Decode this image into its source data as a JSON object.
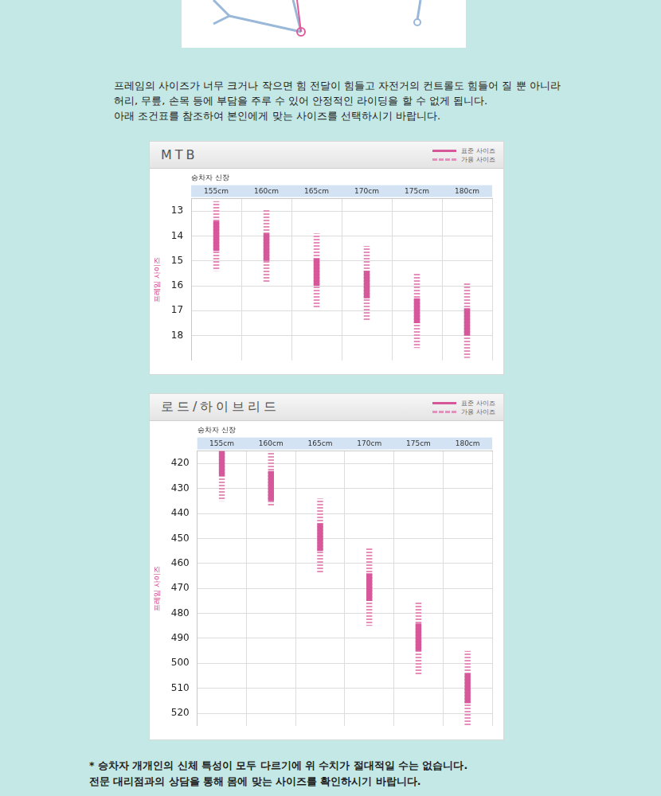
{
  "intro": [
    "프레임의 사이즈가 너무 크거나 작으면 힘 전달이 힘들고 자전거의 컨트롤도 힘들어 질 뿐 아니라",
    "허리, 무릎, 손목 등에 부담을 주루 수 있어 안정적인 라이딩을 할 수 없게 됩니다.",
    "아래 조건표를 참조하여 본인에게 맞는 사이즈를 선택하시기 바랍니다."
  ],
  "chart_data": [
    {
      "type": "bar",
      "title": "MTB",
      "x_label": "승차자 신장",
      "y_label": "프레임 사이즈",
      "categories": [
        "155cm",
        "160cm",
        "165cm",
        "170cm",
        "175cm",
        "180cm"
      ],
      "series": [
        {
          "name": "표준 사이즈",
          "color": "#d6589b",
          "line_style": "solid",
          "values": [
            [
              13.4,
              14.6
            ],
            [
              13.9,
              15.0
            ],
            [
              14.9,
              16.0
            ],
            [
              15.4,
              16.5
            ],
            [
              16.5,
              17.5
            ],
            [
              16.9,
              18.0
            ]
          ]
        },
        {
          "name": "가용 사이즈",
          "color": "#e58fbd",
          "line_style": "dashed",
          "values": [
            [
              12.6,
              15.4
            ],
            [
              12.9,
              15.9
            ],
            [
              13.9,
              16.9
            ],
            [
              14.4,
              17.4
            ],
            [
              15.5,
              18.5
            ],
            [
              15.9,
              18.9
            ]
          ]
        }
      ],
      "ylim": [
        12.5,
        19
      ],
      "yticks": [
        13,
        14,
        15,
        16,
        17,
        18
      ],
      "grid": true,
      "legend": "top-right"
    },
    {
      "type": "bar",
      "title": "로드/하이브리드",
      "x_label": "승차자 신장",
      "y_label": "프레임 사이즈",
      "categories": [
        "155cm",
        "160cm",
        "165cm",
        "170cm",
        "175cm",
        "180cm"
      ],
      "series": [
        {
          "name": "표준 사이즈",
          "color": "#d6589b",
          "line_style": "solid",
          "values": [
            [
              415,
              425
            ],
            [
              423,
              435
            ],
            [
              444,
              455
            ],
            [
              464,
              475
            ],
            [
              484,
              495
            ],
            [
              504,
              516
            ]
          ]
        },
        {
          "name": "가용 사이즈",
          "color": "#e58fbd",
          "line_style": "dashed",
          "values": [
            [
              415,
              435
            ],
            [
              415,
              437
            ],
            [
              434,
              464
            ],
            [
              454,
              485
            ],
            [
              475,
              505
            ],
            [
              495,
              525
            ]
          ]
        }
      ],
      "ylim": [
        415,
        525
      ],
      "yticks": [
        420,
        430,
        440,
        450,
        460,
        470,
        480,
        490,
        500,
        510,
        520
      ],
      "grid": true,
      "legend": "top-right"
    }
  ],
  "notes": [
    "* 승차자 개개인의 신체 특성이 모두 다르기에 위 수치가 절대적일 수는 없습니다.",
    "전문 대리점과의 상담을 통해 몸에 맞는 사이즈를 확인하시기 바랍니다."
  ]
}
